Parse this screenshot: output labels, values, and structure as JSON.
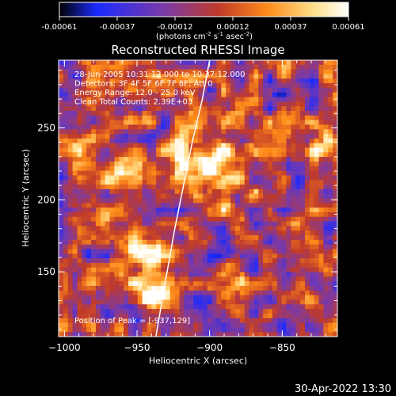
{
  "colorbar": {
    "ticks": [
      "-0.00061",
      "-0.00037",
      "-0.00012",
      "0.00012",
      "0.00037",
      "0.00061"
    ],
    "unit_parts": [
      "(photons cm",
      "-2",
      " s",
      "-1",
      " asec",
      "-2",
      ")"
    ]
  },
  "chart_data": {
    "type": "heatmap",
    "title": "Reconstructed RHESSI Image",
    "xlabel": "Heliocentric X (arcsec)",
    "ylabel": "Heliocentric Y (arcsec)",
    "xlim": [
      -1004,
      -812
    ],
    "ylim": [
      105,
      297
    ],
    "xticks": [
      -1000,
      -950,
      -900,
      -850
    ],
    "xtick_labels": [
      "−1000",
      "−950",
      "−900",
      "−850"
    ],
    "yticks": [
      150,
      200,
      250
    ],
    "ytick_labels": [
      "150",
      "200",
      "250"
    ],
    "value_range": [
      -0.00061,
      0.00061
    ],
    "colormap": [
      "#000000",
      "#1a2aff",
      "#7a3aa8",
      "#c03a2a",
      "#ff8c1a",
      "#ffe08a",
      "#ffffff"
    ],
    "info_lines": [
      "28-Jun-2005 10:31:12.000 to 10:37:12.000",
      "Detectors: 3F 4F 5F 6F 7F 8F; Att 0",
      "Energy Range: 12.0 - 25.0 keV",
      "Clean    Total Counts: 2.39E+03"
    ],
    "peak_label": "Position of Peak = [-937,129]",
    "peak": [
      -937,
      129
    ],
    "limb_curve": [
      [
        -937,
        105
      ],
      [
        -931,
        140
      ],
      [
        -924,
        180
      ],
      [
        -918,
        210
      ],
      [
        -912,
        240
      ],
      [
        -905,
        270
      ],
      [
        -900,
        297
      ]
    ],
    "bright_regions": [
      {
        "x": -935,
        "y": 132,
        "r": 12,
        "v": 0.00061
      },
      {
        "x": -902,
        "y": 222,
        "r": 26,
        "v": 0.00052
      },
      {
        "x": -945,
        "y": 168,
        "r": 18,
        "v": 0.00042
      },
      {
        "x": -965,
        "y": 215,
        "r": 10,
        "v": 0.0003
      },
      {
        "x": -985,
        "y": 240,
        "r": 14,
        "v": 0.0003
      },
      {
        "x": -960,
        "y": 255,
        "r": 10,
        "v": 0.00034
      },
      {
        "x": -820,
        "y": 240,
        "r": 12,
        "v": 0.00046
      },
      {
        "x": -880,
        "y": 150,
        "r": 10,
        "v": 0.00028
      },
      {
        "x": -955,
        "y": 140,
        "r": 10,
        "v": 0.0003
      },
      {
        "x": -990,
        "y": 180,
        "r": 10,
        "v": 0.0002
      }
    ]
  },
  "footer": {
    "timestamp": "30-Apr-2022 13:30"
  }
}
